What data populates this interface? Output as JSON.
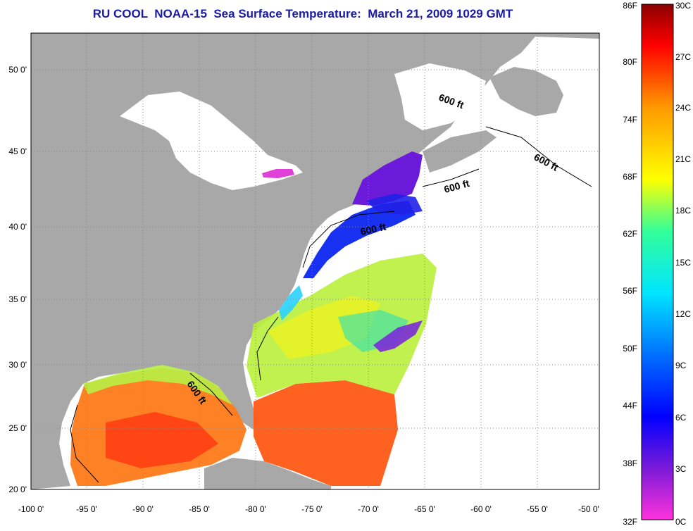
{
  "title": "RU COOL  NOAA-15  Sea Surface Temperature:  March 21, 2009 1029 GMT",
  "map": {
    "longitude_ticks": [
      "-100 0'",
      "-95 0'",
      "-90 0'",
      "-85 0'",
      "-80 0'",
      "-75 0'",
      "-70 0'",
      "-65 0'",
      "-60 0'",
      "-55 0'",
      "-50 0'"
    ],
    "latitude_ticks": [
      "50 0'",
      "45 0'",
      "40 0'",
      "35 0'",
      "30 0'",
      "25 0'",
      "20 0'"
    ],
    "isobath_labels": [
      "600 ft",
      "600 ft",
      "600 ft",
      "600 ft",
      "600 ft"
    ],
    "colors": {
      "land": "#a8a8a8",
      "no_data": "#ffffff",
      "gridline": "#888888"
    }
  },
  "colorbar": {
    "fahrenheit_labels": [
      "86F",
      "80F",
      "74F",
      "68F",
      "62F",
      "56F",
      "50F",
      "44F",
      "38F",
      "32F"
    ],
    "celsius_labels": [
      "30C",
      "27C",
      "24C",
      "21C",
      "18C",
      "15C",
      "12C",
      "9C",
      "6C",
      "3C",
      "0C"
    ],
    "gradient_colors": [
      "#ff33dd",
      "#7a1ad8",
      "#0000ff",
      "#0070ff",
      "#00e5ff",
      "#33ff99",
      "#ffff00",
      "#ff9900",
      "#ff0000",
      "#8b0000"
    ]
  }
}
